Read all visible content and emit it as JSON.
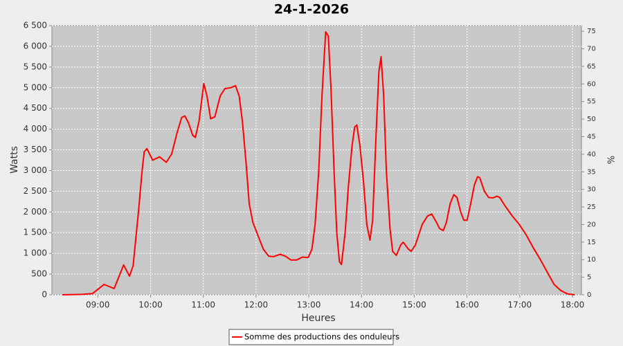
{
  "chart_data": {
    "type": "line",
    "title": "24-1-2026",
    "xlabel": "Heures",
    "ylabel": "Watts",
    "y2label": "%",
    "xlim": [
      8.13,
      18.17
    ],
    "xticks": [
      {
        "value": 9,
        "label": "09:00"
      },
      {
        "value": 10,
        "label": "10:00"
      },
      {
        "value": 11,
        "label": "11:00"
      },
      {
        "value": 12,
        "label": "12:00"
      },
      {
        "value": 13,
        "label": "13:00"
      },
      {
        "value": 14,
        "label": "14:00"
      },
      {
        "value": 15,
        "label": "15:00"
      },
      {
        "value": 16,
        "label": "16:00"
      },
      {
        "value": 17,
        "label": "17:00"
      },
      {
        "value": 18,
        "label": "18:00"
      }
    ],
    "ylim": [
      0,
      6500
    ],
    "yticks": [
      0,
      500,
      {
        "value": 1000,
        "label": "1 000"
      },
      {
        "value": 1500,
        "label": "1 500"
      },
      {
        "value": 2000,
        "label": "2 000"
      },
      {
        "value": 2500,
        "label": "2 500"
      },
      {
        "value": 3000,
        "label": "3 000"
      },
      {
        "value": 3500,
        "label": "3 500"
      },
      {
        "value": 4000,
        "label": "4 000"
      },
      {
        "value": 4500,
        "label": "4 500"
      },
      {
        "value": 5000,
        "label": "5 000"
      },
      {
        "value": 5500,
        "label": "5 500"
      },
      {
        "value": 6000,
        "label": "6 000"
      },
      {
        "value": 6500,
        "label": "6 500"
      }
    ],
    "y2lim": [
      0,
      76.6
    ],
    "y2ticks": [
      0,
      5,
      10,
      15,
      20,
      25,
      30,
      35,
      40,
      45,
      50,
      55,
      60,
      65,
      70,
      75
    ],
    "grid": true,
    "legend": "bottom",
    "series": [
      {
        "name": "Somme des productions des onduleurs",
        "color": "#ff0000",
        "x": [
          8.33,
          8.7,
          8.9,
          9.0,
          9.12,
          9.31,
          9.49,
          9.6,
          9.67,
          9.77,
          9.84,
          9.88,
          9.93,
          10.04,
          10.17,
          10.3,
          10.4,
          10.5,
          10.59,
          10.65,
          10.72,
          10.8,
          10.85,
          10.92,
          11.01,
          11.07,
          11.14,
          11.22,
          11.32,
          11.41,
          11.52,
          11.61,
          11.68,
          11.74,
          11.81,
          11.87,
          11.94,
          12.03,
          12.14,
          12.24,
          12.33,
          12.46,
          12.56,
          12.66,
          12.77,
          12.88,
          12.99,
          13.06,
          13.12,
          13.19,
          13.25,
          13.32,
          13.37,
          13.42,
          13.48,
          13.53,
          13.58,
          13.62,
          13.69,
          13.75,
          13.82,
          13.87,
          13.91,
          13.97,
          14.04,
          14.1,
          14.16,
          14.21,
          14.28,
          14.33,
          14.37,
          14.42,
          14.47,
          14.54,
          14.59,
          14.66,
          14.74,
          14.79,
          14.89,
          14.94,
          15.02,
          15.15,
          15.25,
          15.33,
          15.42,
          15.48,
          15.55,
          15.61,
          15.68,
          15.75,
          15.81,
          15.88,
          15.94,
          16.0,
          16.07,
          16.14,
          16.2,
          16.24,
          16.33,
          16.41,
          16.49,
          16.57,
          16.62,
          16.72,
          16.86,
          16.99,
          17.12,
          17.25,
          17.39,
          17.52,
          17.65,
          17.78,
          17.91,
          18.04
        ],
        "values": [
          0,
          10,
          30,
          130,
          250,
          150,
          720,
          450,
          700,
          2000,
          3000,
          3450,
          3530,
          3250,
          3330,
          3200,
          3400,
          3900,
          4280,
          4320,
          4150,
          3850,
          3800,
          4200,
          5100,
          4800,
          4250,
          4300,
          4800,
          4980,
          5000,
          5050,
          4800,
          4200,
          3200,
          2200,
          1750,
          1450,
          1100,
          930,
          920,
          980,
          930,
          840,
          840,
          910,
          900,
          1100,
          1700,
          3000,
          4800,
          6350,
          6250,
          5000,
          3000,
          1500,
          800,
          730,
          1500,
          2600,
          3600,
          4050,
          4100,
          3600,
          2700,
          1700,
          1320,
          1800,
          4000,
          5400,
          5750,
          4800,
          3000,
          1600,
          1050,
          950,
          1200,
          1270,
          1100,
          1050,
          1200,
          1700,
          1900,
          1950,
          1750,
          1600,
          1550,
          1750,
          2200,
          2420,
          2350,
          2000,
          1800,
          1800,
          2200,
          2650,
          2850,
          2830,
          2500,
          2350,
          2340,
          2380,
          2350,
          2150,
          1900,
          1700,
          1450,
          1150,
          850,
          550,
          250,
          100,
          20,
          0
        ]
      }
    ]
  }
}
